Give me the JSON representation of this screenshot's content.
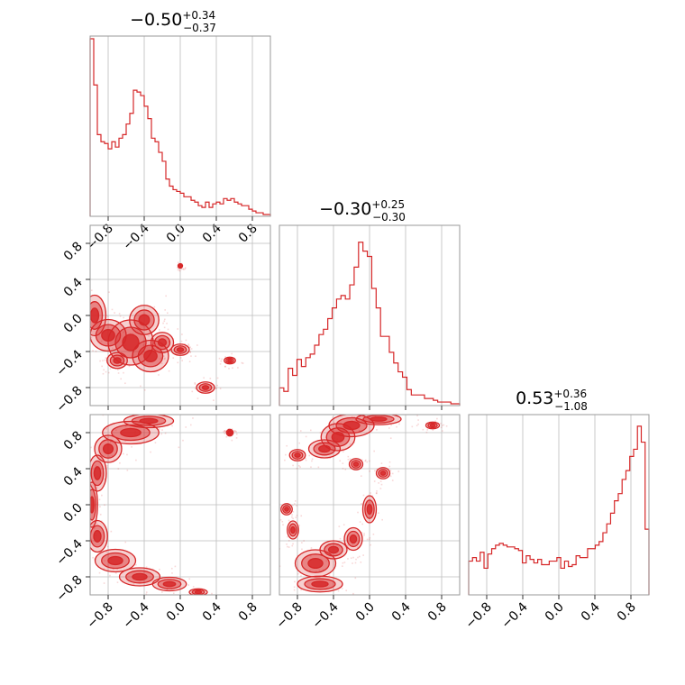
{
  "figure": {
    "type": "corner-plot",
    "color": "#d62728",
    "diagonal_titles": [
      {
        "value": "−0.50",
        "plus": "+0.34",
        "minus": "−0.37"
      },
      {
        "value": "−0.30",
        "plus": "+0.25",
        "minus": "−0.30"
      },
      {
        "value": "0.53",
        "plus": "+0.36",
        "minus": "−1.08"
      }
    ]
  },
  "chart_data": [
    {
      "type": "histogram",
      "panel": "diag-1",
      "title": "−0.50 (+0.34 / −0.37)",
      "xlim": [
        -1.0,
        1.0
      ],
      "xticks": [
        "−0.8",
        "−0.4",
        "0.0",
        "0.4",
        "0.8"
      ],
      "x": [
        -0.98,
        -0.94,
        -0.9,
        -0.86,
        -0.82,
        -0.78,
        -0.74,
        -0.7,
        -0.66,
        -0.62,
        -0.58,
        -0.54,
        -0.5,
        -0.46,
        -0.42,
        -0.38,
        -0.34,
        -0.3,
        -0.26,
        -0.22,
        -0.18,
        -0.14,
        -0.1,
        -0.06,
        -0.02,
        0.02,
        0.06,
        0.1,
        0.14,
        0.18,
        0.22,
        0.26,
        0.3,
        0.34,
        0.38,
        0.42,
        0.46,
        0.5,
        0.54,
        0.58,
        0.62,
        0.66,
        0.7,
        0.74,
        0.78,
        0.82,
        0.86,
        0.9,
        0.94,
        0.98
      ],
      "values": [
        1.0,
        0.74,
        0.46,
        0.42,
        0.41,
        0.38,
        0.42,
        0.39,
        0.44,
        0.46,
        0.52,
        0.58,
        0.71,
        0.7,
        0.68,
        0.62,
        0.55,
        0.44,
        0.42,
        0.36,
        0.31,
        0.21,
        0.17,
        0.15,
        0.14,
        0.13,
        0.11,
        0.11,
        0.09,
        0.08,
        0.06,
        0.05,
        0.08,
        0.05,
        0.07,
        0.08,
        0.07,
        0.1,
        0.09,
        0.1,
        0.08,
        0.07,
        0.06,
        0.06,
        0.04,
        0.03,
        0.02,
        0.02,
        0.01,
        0.01
      ]
    },
    {
      "type": "histogram",
      "panel": "diag-2",
      "title": "−0.30 (+0.25 / −0.30)",
      "xlim": [
        -1.0,
        1.0
      ],
      "values": [
        0.1,
        0.08,
        0.21,
        0.17,
        0.26,
        0.22,
        0.27,
        0.29,
        0.34,
        0.4,
        0.43,
        0.49,
        0.55,
        0.6,
        0.62,
        0.6,
        0.68,
        0.78,
        0.92,
        0.87,
        0.84,
        0.66,
        0.55,
        0.39,
        0.39,
        0.3,
        0.24,
        0.19,
        0.16,
        0.09,
        0.06,
        0.06,
        0.06,
        0.04,
        0.04,
        0.03,
        0.02,
        0.02,
        0.02,
        0.01,
        0.01
      ]
    },
    {
      "type": "histogram",
      "panel": "diag-3",
      "title": "0.53 (+0.36 / −1.08)",
      "xlim": [
        -1.0,
        1.0
      ],
      "xticks": [
        "−0.8",
        "−0.4",
        "0.0",
        "0.4",
        "0.8"
      ],
      "values": [
        0.19,
        0.21,
        0.19,
        0.24,
        0.15,
        0.23,
        0.26,
        0.28,
        0.29,
        0.28,
        0.27,
        0.27,
        0.26,
        0.25,
        0.18,
        0.22,
        0.2,
        0.18,
        0.2,
        0.17,
        0.17,
        0.19,
        0.19,
        0.21,
        0.15,
        0.19,
        0.16,
        0.17,
        0.22,
        0.21,
        0.21,
        0.26,
        0.26,
        0.28,
        0.3,
        0.35,
        0.4,
        0.46,
        0.53,
        0.57,
        0.65,
        0.7,
        0.78,
        0.82,
        0.95,
        0.86,
        0.37
      ]
    },
    {
      "type": "contour",
      "panel": "row2-col1",
      "xlim": [
        -1.0,
        1.0
      ],
      "ylim": [
        -1.0,
        1.0
      ],
      "yticks": [
        "−0.8",
        "−0.4",
        "0.0",
        "0.4",
        "0.8"
      ],
      "contour_levels": 3,
      "blobs": [
        {
          "x": -0.95,
          "y": 0.0,
          "rx": 0.1,
          "ry": 0.18
        },
        {
          "x": -0.8,
          "y": -0.22,
          "rx": 0.16,
          "ry": 0.14
        },
        {
          "x": -0.55,
          "y": -0.3,
          "rx": 0.2,
          "ry": 0.2
        },
        {
          "x": -0.4,
          "y": -0.05,
          "rx": 0.13,
          "ry": 0.13
        },
        {
          "x": -0.33,
          "y": -0.45,
          "rx": 0.16,
          "ry": 0.14
        },
        {
          "x": -0.2,
          "y": -0.3,
          "rx": 0.1,
          "ry": 0.09
        },
        {
          "x": -0.7,
          "y": -0.5,
          "rx": 0.09,
          "ry": 0.07
        },
        {
          "x": 0.0,
          "y": -0.38,
          "rx": 0.08,
          "ry": 0.05
        },
        {
          "x": 0.28,
          "y": -0.8,
          "rx": 0.08,
          "ry": 0.05
        },
        {
          "x": 0.55,
          "y": -0.5,
          "rx": 0.05,
          "ry": 0.03
        },
        {
          "x": 0.0,
          "y": 0.55,
          "rx": 0.02,
          "ry": 0.02
        }
      ]
    },
    {
      "type": "contour",
      "panel": "row3-col1",
      "xlim": [
        -1.0,
        1.0
      ],
      "ylim": [
        -1.0,
        1.0
      ],
      "yticks": [
        "−0.8",
        "−0.4",
        "0.0",
        "0.4",
        "0.8"
      ],
      "xticks": [
        "−0.8",
        "−0.4",
        "0.0",
        "0.4",
        "0.8"
      ],
      "contour_levels": 3,
      "blobs": [
        {
          "x": -0.55,
          "y": 0.8,
          "rx": 0.25,
          "ry": 0.1
        },
        {
          "x": -0.35,
          "y": 0.93,
          "rx": 0.22,
          "ry": 0.06
        },
        {
          "x": -0.8,
          "y": 0.62,
          "rx": 0.12,
          "ry": 0.12
        },
        {
          "x": -0.92,
          "y": 0.35,
          "rx": 0.08,
          "ry": 0.16
        },
        {
          "x": -0.98,
          "y": 0.0,
          "rx": 0.05,
          "ry": 0.2
        },
        {
          "x": -0.92,
          "y": -0.35,
          "rx": 0.09,
          "ry": 0.14
        },
        {
          "x": -0.72,
          "y": -0.62,
          "rx": 0.18,
          "ry": 0.1
        },
        {
          "x": -0.45,
          "y": -0.8,
          "rx": 0.18,
          "ry": 0.08
        },
        {
          "x": -0.12,
          "y": -0.88,
          "rx": 0.15,
          "ry": 0.06
        },
        {
          "x": 0.2,
          "y": -0.97,
          "rx": 0.08,
          "ry": 0.03
        },
        {
          "x": 0.55,
          "y": 0.8,
          "rx": 0.03,
          "ry": 0.03
        }
      ]
    },
    {
      "type": "contour",
      "panel": "row3-col2",
      "xlim": [
        -1.0,
        1.0
      ],
      "ylim": [
        -1.0,
        1.0
      ],
      "xticks": [
        "−0.8",
        "−0.4",
        "0.0",
        "0.4",
        "0.8"
      ],
      "contour_levels": 3,
      "blobs": [
        {
          "x": -0.2,
          "y": 0.88,
          "rx": 0.2,
          "ry": 0.1
        },
        {
          "x": -0.35,
          "y": 0.75,
          "rx": 0.15,
          "ry": 0.12
        },
        {
          "x": 0.1,
          "y": 0.95,
          "rx": 0.2,
          "ry": 0.05
        },
        {
          "x": -0.5,
          "y": 0.62,
          "rx": 0.14,
          "ry": 0.08
        },
        {
          "x": -0.8,
          "y": 0.55,
          "rx": 0.07,
          "ry": 0.05
        },
        {
          "x": -0.15,
          "y": 0.45,
          "rx": 0.06,
          "ry": 0.05
        },
        {
          "x": 0.15,
          "y": 0.35,
          "rx": 0.06,
          "ry": 0.05
        },
        {
          "x": 0.0,
          "y": -0.05,
          "rx": 0.06,
          "ry": 0.12
        },
        {
          "x": -0.18,
          "y": -0.38,
          "rx": 0.08,
          "ry": 0.1
        },
        {
          "x": -0.4,
          "y": -0.5,
          "rx": 0.12,
          "ry": 0.08
        },
        {
          "x": -0.6,
          "y": -0.65,
          "rx": 0.18,
          "ry": 0.12
        },
        {
          "x": -0.55,
          "y": -0.88,
          "rx": 0.2,
          "ry": 0.07
        },
        {
          "x": -0.92,
          "y": -0.05,
          "rx": 0.05,
          "ry": 0.05
        },
        {
          "x": -0.85,
          "y": -0.28,
          "rx": 0.05,
          "ry": 0.08
        },
        {
          "x": 0.7,
          "y": 0.88,
          "rx": 0.06,
          "ry": 0.03
        }
      ]
    }
  ]
}
